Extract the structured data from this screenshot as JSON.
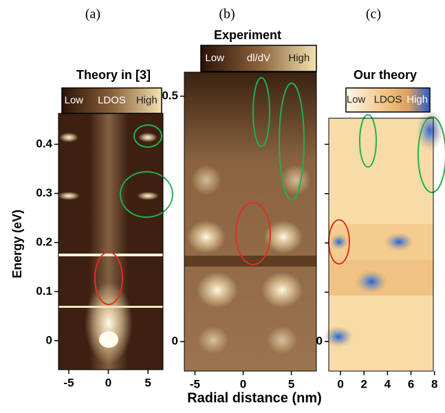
{
  "chart_data": [
    {
      "type": "image",
      "label": "(a)",
      "title": "Theory in [3]",
      "colorbar_labels": [
        "Low",
        "LDOS",
        "High"
      ],
      "ylabel": "Energy (eV)",
      "xlim": [
        -6.3,
        6.9
      ],
      "xticks": [
        -5,
        0,
        5
      ],
      "ylim": [
        -0.059,
        0.463
      ],
      "yticks": [
        0,
        0.1,
        0.2,
        0.3,
        0.4
      ]
    },
    {
      "type": "image",
      "label": "(b)",
      "title": "Experiment",
      "colorbar_labels": [
        "Low",
        "dl/dV",
        "High"
      ],
      "xlabel": "Radial distance (nm)",
      "xlim": [
        -6.1,
        7.6
      ],
      "xticks": [
        -5,
        0,
        5
      ],
      "ylim": [
        -0.06,
        0.549
      ],
      "yticks": [
        0,
        0.5
      ]
    },
    {
      "type": "image",
      "label": "(c)",
      "title": "Our theory",
      "colorbar_labels": [
        "Low",
        "LDOS",
        "High"
      ],
      "xlim": [
        -1,
        7.9
      ],
      "xticks": [
        0,
        2,
        4,
        6,
        8
      ],
      "ylim": [
        -0.06,
        0.453
      ],
      "yticks": [
        0
      ],
      "ytick_marks": [
        0.1,
        0.2,
        0.3,
        0.4
      ]
    }
  ]
}
